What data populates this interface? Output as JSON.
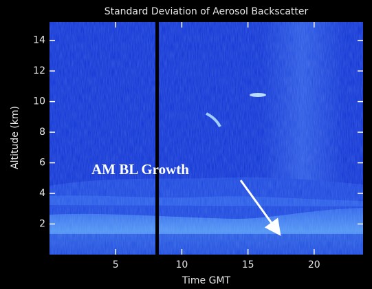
{
  "chart_data": {
    "type": "heatmap",
    "title": "Standard Deviation of Aerosol Backscatter",
    "x_label": "Time GMT",
    "y_label": "Altitude (km)",
    "xlim": [
      0,
      23.7
    ],
    "xticks": [
      5,
      10,
      15,
      20
    ],
    "ylim": [
      0,
      15.2
    ],
    "yticks": [
      2,
      4,
      6,
      8,
      10,
      12,
      14
    ],
    "annotation": "AM BL Growth"
  }
}
